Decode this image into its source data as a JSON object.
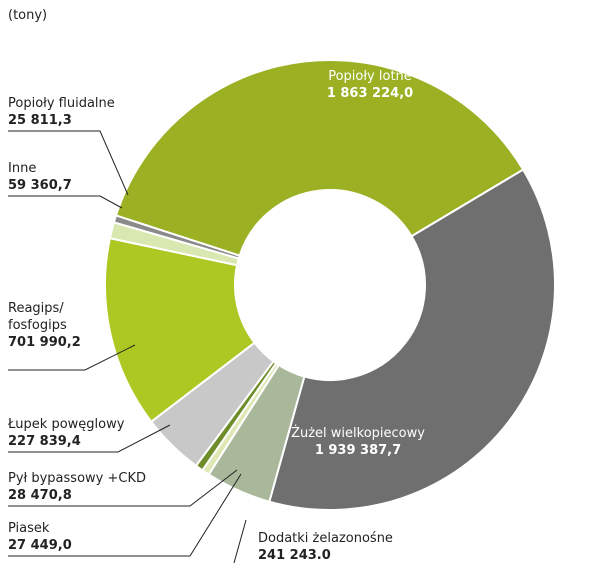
{
  "chart_data": {
    "type": "donut",
    "subtitle": "(tony)",
    "categories": [
      "Popioły lotne",
      "Żużel wielkopiecowy",
      "Dodatki żelazonośne",
      "Piasek",
      "Pył bypassowy +CKD",
      "Łupek powęglowy",
      "Reagips/\nfosfogips",
      "Inne",
      "Popioły fluidalne"
    ],
    "values": [
      1863224.0,
      1939387.7,
      241243.0,
      27449.0,
      28470.8,
      227839.4,
      701990.2,
      59360.7,
      25811.3
    ],
    "value_labels": [
      "1 863 224,0",
      "1 939 387,7",
      "241 243.0",
      "27 449,0",
      "28 470,8",
      "227 839,4",
      "701 990,2",
      "59 360,7",
      "25 811,3"
    ],
    "colors": [
      "#9bb023",
      "#6f6f6f",
      "#a9b89a",
      "#dfe8b5",
      "#6e8c2a",
      "#c8c8c8",
      "#adc823",
      "#d8e8b0",
      "#8a8a8a"
    ]
  }
}
